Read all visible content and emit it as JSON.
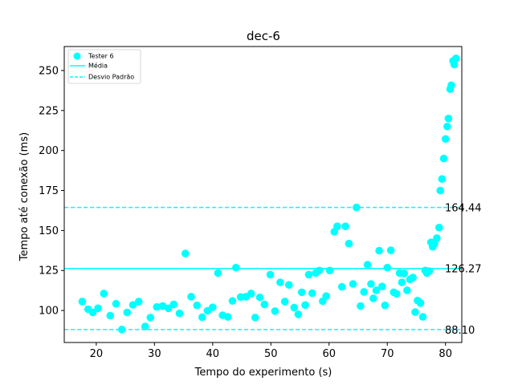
{
  "chart_data": {
    "type": "scatter",
    "title": "dec-6",
    "xlabel": "Tempo do experimento (s)",
    "ylabel": "Tempo até conexão (ms)",
    "xlim": [
      14.5,
      82.8
    ],
    "ylim": [
      80,
      265
    ],
    "xticks": [
      20,
      30,
      40,
      50,
      60,
      70,
      80
    ],
    "yticks": [
      100,
      125,
      150,
      175,
      200,
      225,
      250
    ],
    "grid": false,
    "legend_position": "top-left",
    "colors": {
      "series": "#00ffff",
      "axis": "#000000",
      "background": "#ffffff"
    },
    "series": [
      {
        "name": "Tester 6",
        "marker": "circle",
        "points": [
          [
            17.6,
            105.6
          ],
          [
            18.6,
            100.8
          ],
          [
            19.4,
            98.8
          ],
          [
            20.3,
            101.4
          ],
          [
            21.3,
            110.6
          ],
          [
            22.4,
            96.8
          ],
          [
            23.4,
            104.2
          ],
          [
            24.4,
            88.1
          ],
          [
            25.3,
            98.8
          ],
          [
            26.3,
            103.5
          ],
          [
            27.3,
            105.6
          ],
          [
            28.4,
            90.0
          ],
          [
            29.3,
            95.6
          ],
          [
            30.4,
            102.2
          ],
          [
            31.4,
            102.8
          ],
          [
            32.4,
            101.4
          ],
          [
            33.3,
            103.8
          ],
          [
            34.3,
            98.2
          ],
          [
            35.3,
            135.6
          ],
          [
            36.3,
            108.6
          ],
          [
            37.3,
            103.2
          ],
          [
            38.2,
            95.8
          ],
          [
            39.1,
            99.8
          ],
          [
            40.0,
            102.0
          ],
          [
            40.9,
            123.4
          ],
          [
            41.7,
            97.0
          ],
          [
            42.6,
            96.0
          ],
          [
            43.4,
            106.0
          ],
          [
            44.0,
            126.8
          ],
          [
            44.8,
            108.4
          ],
          [
            45.7,
            108.6
          ],
          [
            46.6,
            110.6
          ],
          [
            47.3,
            95.6
          ],
          [
            48.1,
            108.2
          ],
          [
            48.9,
            103.8
          ],
          [
            49.9,
            122.4
          ],
          [
            50.7,
            99.6
          ],
          [
            51.6,
            117.6
          ],
          [
            52.4,
            105.6
          ],
          [
            53.1,
            116.0
          ],
          [
            54.0,
            101.8
          ],
          [
            54.7,
            97.6
          ],
          [
            55.3,
            111.4
          ],
          [
            55.9,
            103.4
          ],
          [
            56.5,
            122.4
          ],
          [
            57.1,
            110.8
          ],
          [
            57.7,
            123.4
          ],
          [
            58.3,
            125.0
          ],
          [
            58.9,
            105.8
          ],
          [
            59.5,
            109.0
          ],
          [
            60.1,
            125.0
          ],
          [
            60.9,
            149.2
          ],
          [
            61.4,
            152.6
          ],
          [
            62.2,
            114.8
          ],
          [
            62.8,
            152.6
          ],
          [
            63.4,
            141.8
          ],
          [
            64.1,
            116.6
          ],
          [
            64.7,
            164.4
          ],
          [
            65.4,
            102.8
          ],
          [
            66.0,
            111.6
          ],
          [
            66.6,
            128.6
          ],
          [
            67.2,
            116.6
          ],
          [
            67.6,
            107.6
          ],
          [
            68.1,
            112.6
          ],
          [
            68.6,
            137.4
          ],
          [
            69.1,
            115.0
          ],
          [
            69.6,
            103.2
          ],
          [
            70.0,
            126.8
          ],
          [
            70.6,
            137.6
          ],
          [
            71.1,
            111.4
          ],
          [
            71.6,
            110.4
          ],
          [
            72.1,
            123.4
          ],
          [
            72.5,
            117.6
          ],
          [
            72.9,
            123.2
          ],
          [
            73.4,
            112.6
          ],
          [
            73.9,
            119.4
          ],
          [
            74.4,
            120.6
          ],
          [
            74.8,
            99.0
          ],
          [
            75.2,
            106.2
          ],
          [
            75.7,
            104.6
          ],
          [
            76.1,
            96.0
          ],
          [
            76.5,
            125.0
          ],
          [
            76.8,
            123.4
          ],
          [
            77.2,
            124.6
          ],
          [
            77.5,
            142.6
          ],
          [
            77.8,
            139.8
          ],
          [
            78.1,
            141.8
          ],
          [
            78.5,
            145.2
          ],
          [
            78.9,
            151.8
          ],
          [
            79.1,
            175.0
          ],
          [
            79.4,
            182.2
          ],
          [
            79.7,
            195.0
          ],
          [
            80.0,
            207.2
          ],
          [
            80.3,
            215.0
          ],
          [
            80.5,
            220.0
          ],
          [
            80.8,
            238.4
          ],
          [
            81.0,
            240.8
          ],
          [
            81.3,
            256.0
          ],
          [
            81.5,
            253.8
          ],
          [
            81.8,
            257.6
          ]
        ]
      }
    ],
    "hlines": [
      {
        "name": "Média",
        "value": 126.27,
        "label": "126.27",
        "style": "solid"
      },
      {
        "name": "Desvio Padrão",
        "value": 164.44,
        "label": "164.44",
        "style": "dashed"
      },
      {
        "value": 88.1,
        "label": "88.10",
        "style": "dashed"
      }
    ]
  }
}
